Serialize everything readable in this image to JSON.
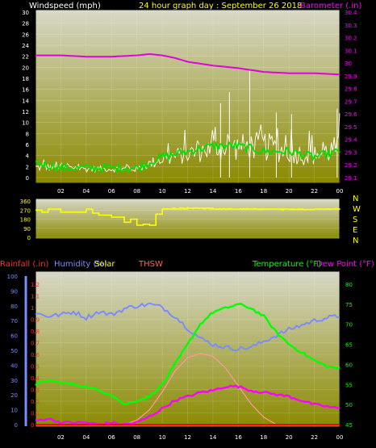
{
  "header": {
    "windspeed_label": "Windspeed (mph)",
    "title": "24 hour graph day : September 26 2018",
    "barometer_label": "Barometer (.in)"
  },
  "compass": [
    "N",
    "W",
    "S",
    "E",
    "N"
  ],
  "bottom_labels": {
    "rainfall": "Rainfall (.in)",
    "humidity": "Humidity (%)",
    "solar": "Solar",
    "thsw": "THSW",
    "temperature": "Temperature (°F)",
    "dewpoint": "Dew Point (°F)"
  },
  "colors": {
    "wind": "#ffffff",
    "gust": "#00e000",
    "barometer": "#e000e0",
    "direction": "#ffff00",
    "humidity": "#7b8cff",
    "temperature": "#00ff00",
    "dewpoint": "#ff00ff",
    "solar": "#ff9999",
    "rainfall": "#ff0000",
    "plot_top": "#d8d8c8",
    "plot_bottom": "#8a8a00"
  },
  "chart_data": [
    {
      "type": "line",
      "title": "24 hour graph day : September 26 2018",
      "x_ticks": [
        "02",
        "04",
        "06",
        "08",
        "10",
        "12",
        "14",
        "16",
        "18",
        "20",
        "22",
        "00"
      ],
      "ylabel": "Windspeed (mph)",
      "ylim": [
        0,
        30
      ],
      "y_ticks": [
        "0",
        "2",
        "4",
        "6",
        "8",
        "10",
        "12",
        "14",
        "16",
        "18",
        "20",
        "22",
        "24",
        "26",
        "28",
        "30"
      ],
      "y2label": "Barometer (.in)",
      "y2lim": [
        29.1,
        30.4
      ],
      "y2_ticks": [
        "29.1",
        "29.2",
        "29.3",
        "29.4",
        "29.5",
        "29.6",
        "29.7",
        "29.8",
        "29.9",
        "30",
        "30.1",
        "30.2",
        "30.3",
        "30.4"
      ],
      "series": [
        {
          "name": "Barometer (.in)",
          "x": [
            0,
            2,
            4,
            6,
            8,
            9,
            10,
            11,
            12,
            14,
            16,
            18,
            20,
            22,
            24
          ],
          "values": [
            30.06,
            30.06,
            30.05,
            30.05,
            30.06,
            30.07,
            30.06,
            30.04,
            30.01,
            29.98,
            29.96,
            29.93,
            29.92,
            29.92,
            29.91
          ]
        },
        {
          "name": "wind_avg",
          "x": [
            0,
            2,
            4,
            6,
            8,
            10,
            12,
            14,
            16,
            18,
            20,
            22,
            24
          ],
          "values": [
            1,
            1.5,
            1,
            1,
            1,
            2,
            2.5,
            3,
            3,
            3,
            2.5,
            2,
            3
          ]
        },
        {
          "name": "wind_gust",
          "x": [
            0,
            2,
            4,
            6,
            8,
            10,
            12,
            14,
            16,
            18,
            20,
            22,
            24
          ],
          "values": [
            3,
            2,
            2,
            2,
            2,
            4,
            5,
            6,
            6,
            5,
            5,
            4,
            5
          ]
        },
        {
          "name": "wind_peak",
          "x": [
            0,
            2,
            4,
            6,
            8,
            10,
            12,
            14,
            16,
            18,
            20,
            22,
            24
          ],
          "values": [
            4,
            3,
            3,
            3,
            3,
            7,
            9,
            11,
            12,
            13,
            10,
            9,
            12
          ]
        }
      ]
    },
    {
      "type": "line",
      "ylim": [
        0,
        360
      ],
      "y_ticks": [
        "0",
        "90",
        "180",
        "270",
        "360"
      ],
      "series": [
        {
          "name": "wind_direction",
          "x": [
            0,
            0.5,
            1,
            2,
            3,
            4,
            4.5,
            5,
            6,
            7,
            7.5,
            8,
            8.5,
            9,
            9.5,
            10,
            12,
            14,
            16,
            18,
            20,
            22,
            24
          ],
          "values": [
            270,
            250,
            280,
            250,
            250,
            280,
            240,
            220,
            200,
            150,
            180,
            120,
            130,
            120,
            230,
            280,
            290,
            280,
            280,
            280,
            275,
            280,
            285
          ]
        }
      ]
    },
    {
      "type": "line",
      "labels": [
        "Rainfall (.in)",
        "Humidity (%)",
        "Solar",
        "THSW",
        "Temperature (°F)",
        "Dew Point (°F)"
      ],
      "y_left_ticks": [
        "0",
        "10",
        "20",
        "30",
        "40",
        "50",
        "60",
        "70",
        "80",
        "90",
        "100"
      ],
      "rain_ticks": [
        "0",
        "0.1",
        "0.2",
        "0.3",
        "0.4",
        "0.5",
        "0.6",
        "0.7",
        "0.8",
        "0.9",
        "1",
        "1.1",
        "1.2"
      ],
      "y_right_ticks": [
        "45",
        "50",
        "55",
        "60",
        "65",
        "70",
        "75",
        "80"
      ],
      "temp_lim": [
        45,
        82
      ],
      "series": [
        {
          "name": "Humidity (%)",
          "x": [
            0,
            1,
            2,
            3,
            4,
            5,
            6,
            7,
            8,
            9,
            10,
            11,
            12,
            13,
            14,
            15,
            16,
            17,
            18,
            19,
            20,
            21,
            22,
            23,
            24
          ],
          "values": [
            75,
            73,
            74,
            76,
            72,
            76,
            74,
            78,
            80,
            81,
            79,
            73,
            65,
            58,
            54,
            52,
            51,
            52,
            56,
            60,
            64,
            67,
            70,
            72,
            73
          ]
        },
        {
          "name": "Temperature (°F)",
          "x": [
            0,
            1,
            2,
            3,
            4,
            5,
            6,
            7,
            8,
            9,
            10,
            11,
            12,
            13,
            14,
            15,
            16,
            17,
            18,
            19,
            20,
            21,
            22,
            23,
            24
          ],
          "values": [
            55,
            56,
            55.5,
            55,
            54.5,
            53.5,
            52.5,
            50,
            51,
            52,
            55,
            60,
            65,
            70,
            73,
            74,
            75,
            74,
            72,
            68,
            65,
            63,
            61,
            59.5,
            59
          ]
        },
        {
          "name": "Dew Point (°F)",
          "x": [
            0,
            1,
            2,
            3,
            4,
            5,
            6,
            7,
            8,
            9,
            10,
            11,
            12,
            13,
            14,
            15,
            16,
            17,
            18,
            19,
            20,
            21,
            22,
            23,
            24
          ],
          "values": [
            46,
            46.5,
            45.5,
            45.5,
            45.5,
            45,
            45.5,
            45,
            45.5,
            47,
            49,
            51,
            52,
            53,
            53.5,
            54.5,
            54.5,
            53.5,
            53,
            52.5,
            52,
            51,
            50,
            49.5,
            49
          ]
        },
        {
          "name": "Solar",
          "x": [
            7,
            8,
            9,
            10,
            11,
            12,
            13,
            14,
            15,
            16,
            17,
            18,
            19
          ],
          "values": [
            0,
            3,
            10,
            22,
            36,
            45,
            48,
            46,
            38,
            26,
            14,
            5,
            0
          ]
        },
        {
          "name": "Rainfall (.in)",
          "x": [
            0,
            24
          ],
          "values": [
            0,
            0
          ]
        }
      ]
    }
  ]
}
